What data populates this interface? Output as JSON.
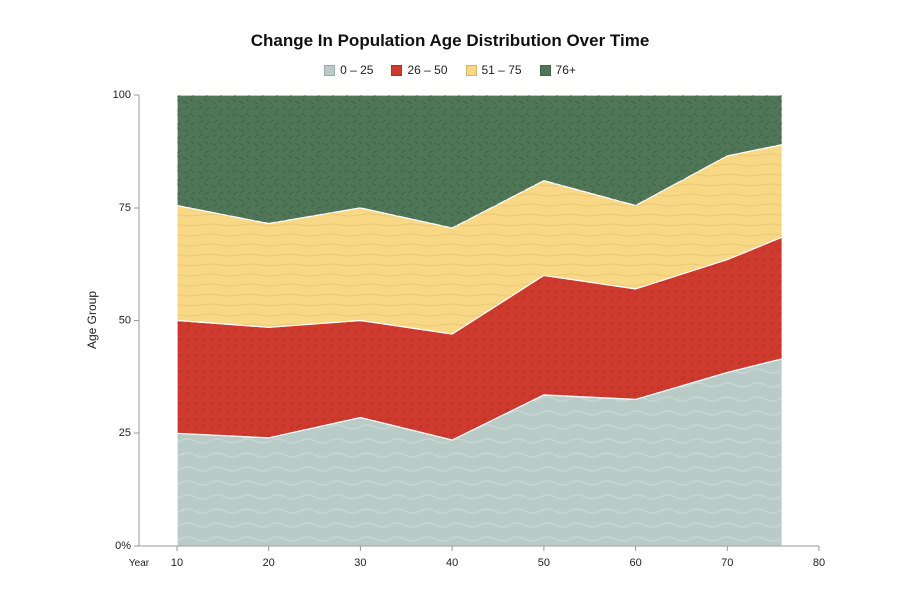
{
  "colors": {
    "0-25": "#b9cbc7",
    "26-50": "#cf3a2e",
    "51-75": "#f8d785",
    "76+": "#4f7757",
    "axis": "#999999"
  },
  "chart_data": {
    "type": "area",
    "stacked": true,
    "title": "Change In Population Age Distribution Over Time",
    "xlabel": "Year",
    "ylabel": "Age Group",
    "x": [
      10,
      20,
      30,
      40,
      50,
      60,
      70,
      76
    ],
    "xlim": [
      10,
      80
    ],
    "xticks": [
      "10",
      "20",
      "30",
      "40",
      "50",
      "60",
      "70",
      "80"
    ],
    "ylim": [
      0,
      100
    ],
    "yticks": [
      "0%",
      "25",
      "50",
      "75",
      "100"
    ],
    "legend_position": "top-center",
    "grid": false,
    "series": [
      {
        "name": "0 – 25",
        "color_key": "0-25",
        "values": [
          25,
          24,
          28.5,
          23.5,
          33.5,
          32.5,
          38.5,
          41.5
        ]
      },
      {
        "name": "26 – 50",
        "color_key": "26-50",
        "values": [
          25,
          24.5,
          21.5,
          23.5,
          26.5,
          24.5,
          25,
          27
        ]
      },
      {
        "name": "51 – 75",
        "color_key": "51-75",
        "values": [
          25.5,
          23,
          25,
          23.5,
          21,
          18.5,
          23,
          20.5
        ]
      },
      {
        "name": "76+",
        "color_key": "76+",
        "values": [
          24.5,
          28.5,
          25,
          29.5,
          19,
          24.5,
          13.5,
          11
        ]
      }
    ]
  }
}
